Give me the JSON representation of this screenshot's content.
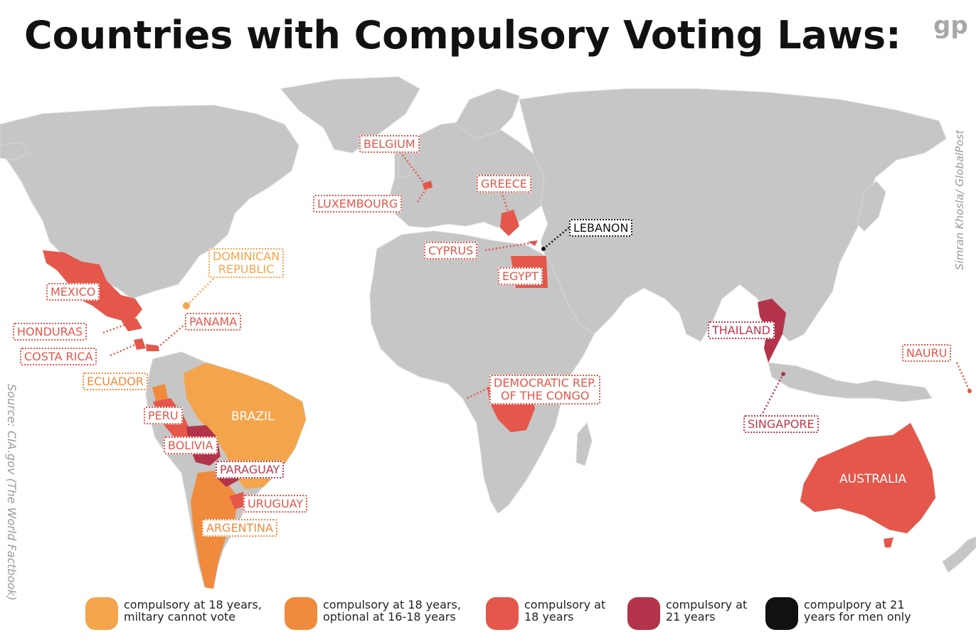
{
  "title": "Countries with Compulsory Voting Laws:",
  "logo": "gp",
  "credit": "Simran Khosla/ GlobalPost",
  "source": "Source: CIA.gov (The World Factbook)",
  "colors": {
    "land": "#c6c6c6",
    "cat1": "#f4a54c",
    "cat2": "#f08a3c",
    "cat3": "#e4574a",
    "cat4": "#b3344a",
    "cat5": "#111111"
  },
  "labels": {
    "belgium": "BELGIUM",
    "greece": "GREECE",
    "luxembourg": "LUXEMBOURG",
    "lebanon": "LEBANON",
    "cyprus": "CYPRUS",
    "egypt": "EGYPT",
    "dominican": "DOMINICAN\nREPUBLIC",
    "mexico": "MEXICO",
    "honduras": "HONDURAS",
    "panama": "PANAMA",
    "costa_rica": "COSTA RICA",
    "ecuador": "ECUADOR",
    "peru": "PERU",
    "brazil": "BRAZIL",
    "bolivia": "BOLIVIA",
    "paraguay": "PARAGUAY",
    "uruguay": "URUGUAY",
    "argentina": "ARGENTINA",
    "congo": "DEMOCRATIC REP.\nOF THE CONGO",
    "thailand": "THAILAND",
    "singapore": "SINGAPORE",
    "nauru": "NAURU",
    "australia": "AUSTRALIA"
  },
  "legend": [
    {
      "text": "compulsory at 18 years,\nmiltary cannot vote",
      "color": "#f4a54c"
    },
    {
      "text": "compulsory at 18 years,\noptional at 16-18 years",
      "color": "#f08a3c"
    },
    {
      "text": "compulsory at\n18 years",
      "color": "#e4574a"
    },
    {
      "text": "compulsory at\n21 years",
      "color": "#b3344a"
    },
    {
      "text": "compulpory at 21\nyears for men only",
      "color": "#111111"
    }
  ]
}
